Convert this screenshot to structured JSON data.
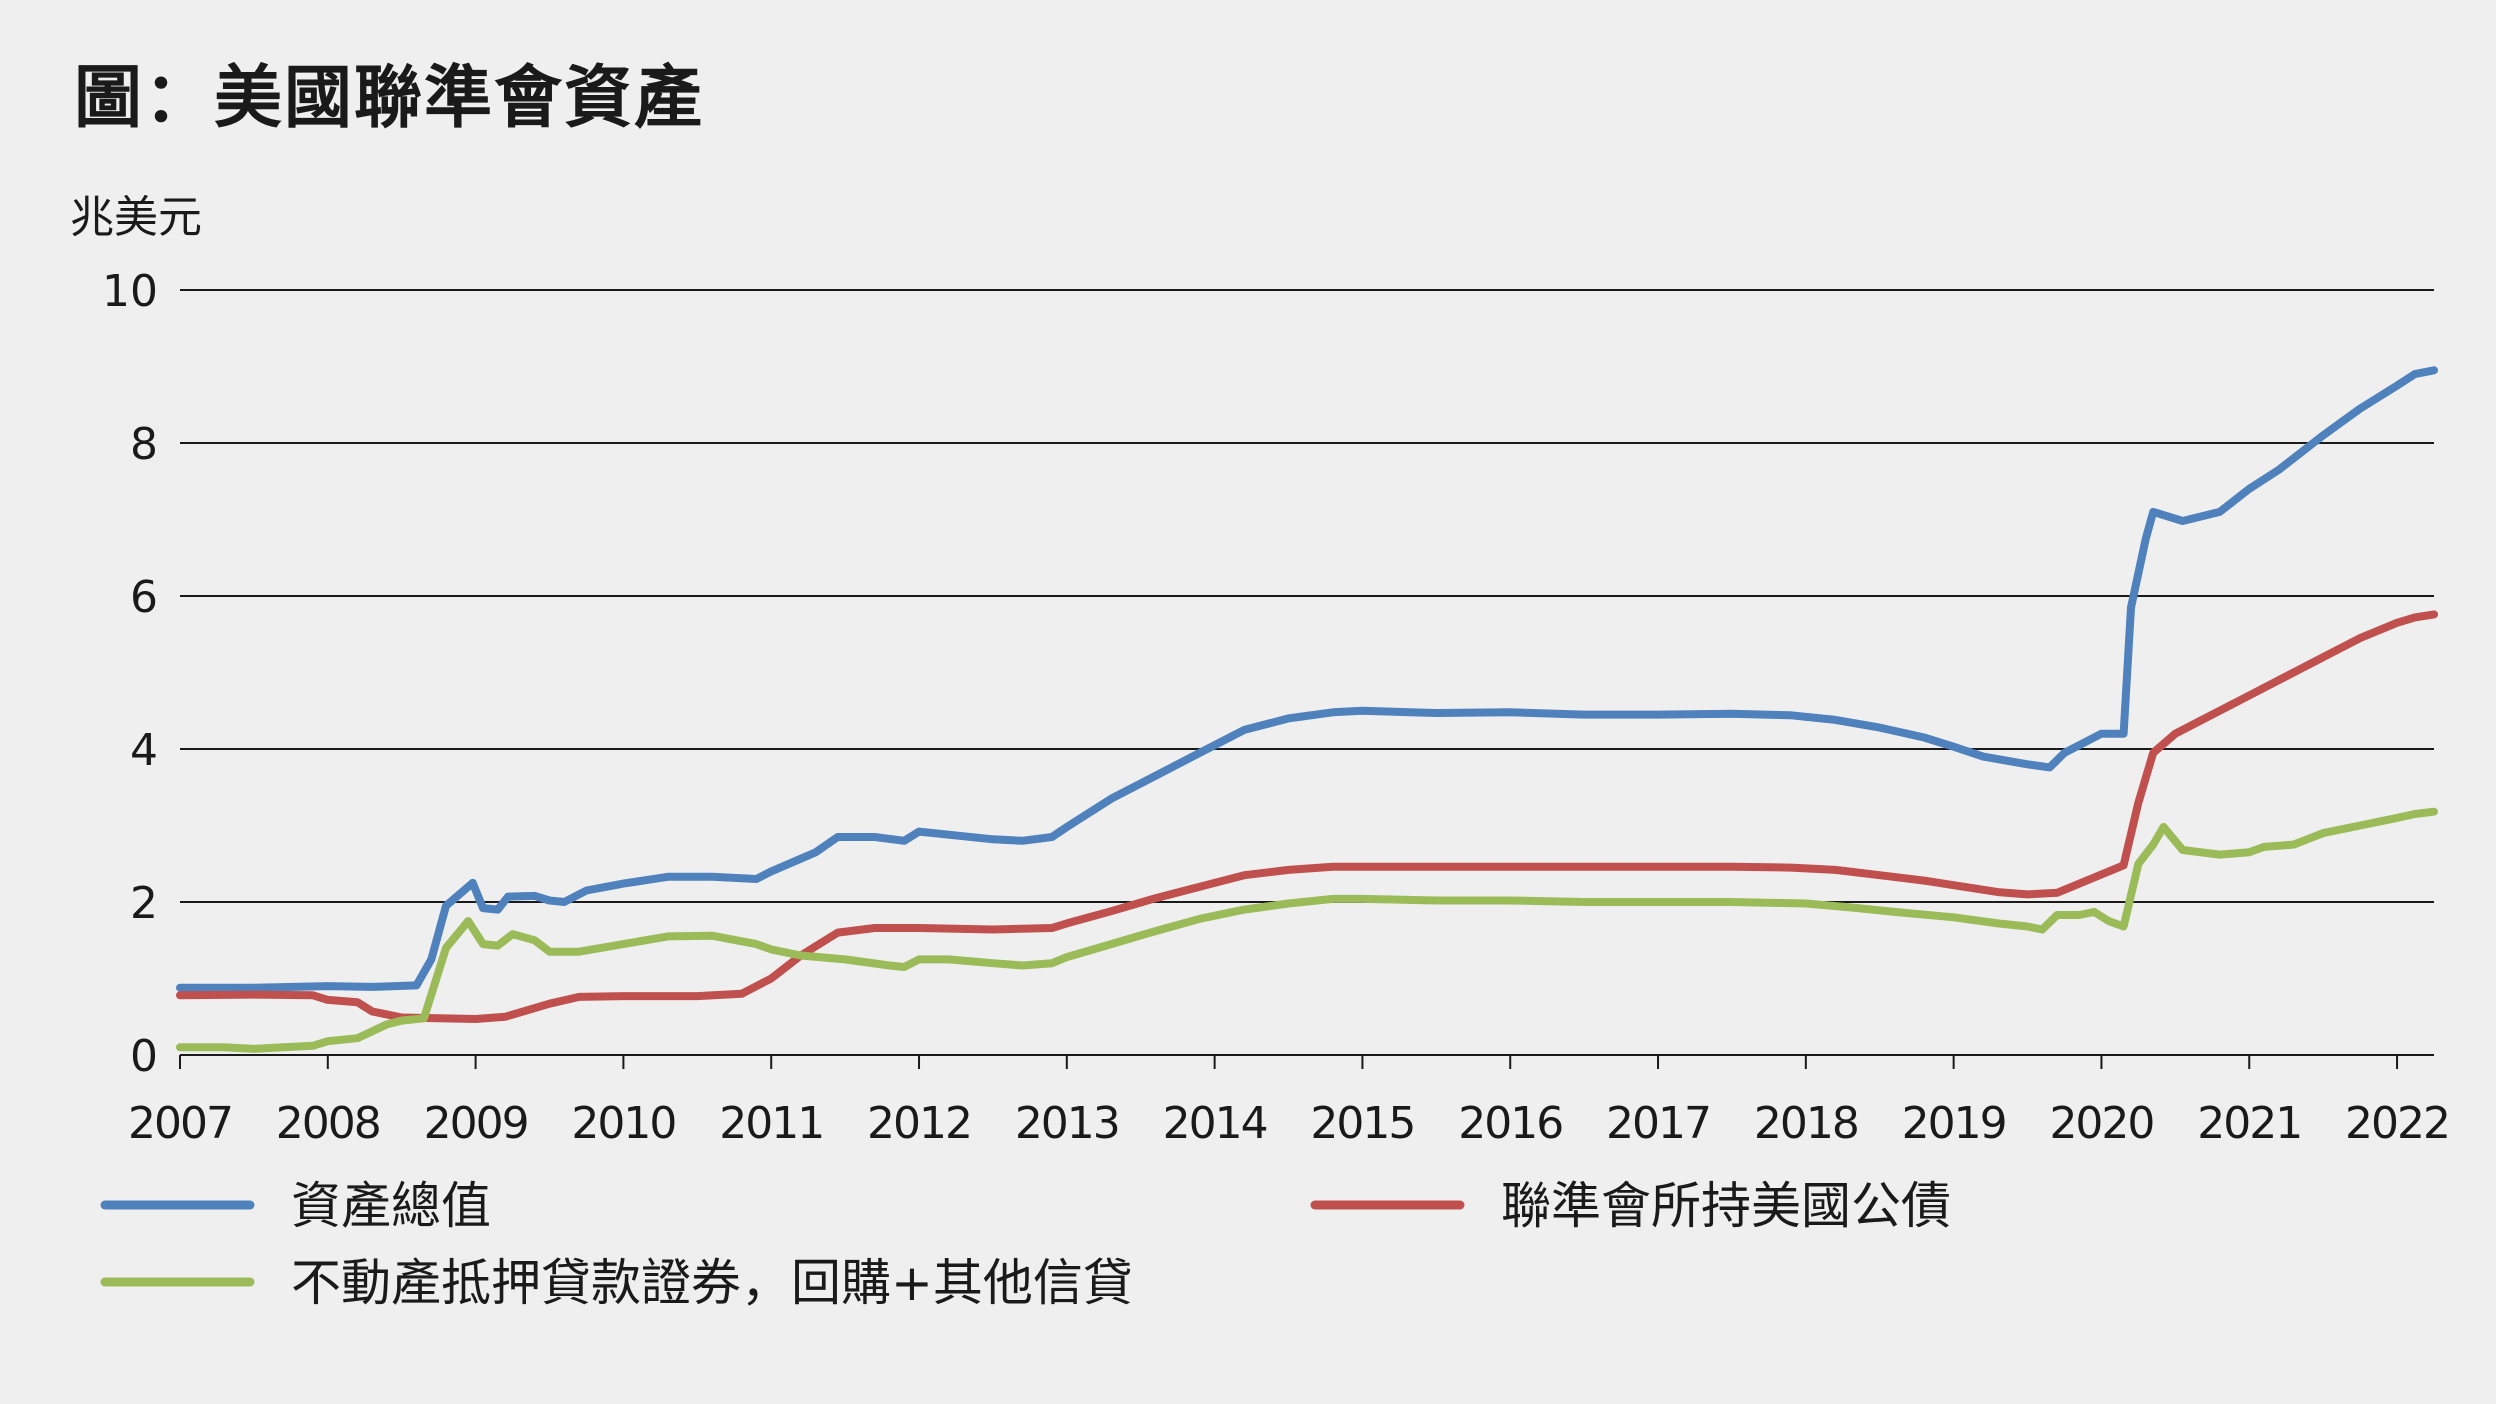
{
  "title": "圖：美國聯準會資產",
  "chart_data": {
    "type": "line",
    "title": "圖：美國聯準會資產",
    "ylabel": "兆美元",
    "xlabel": "",
    "ylim": [
      0,
      10
    ],
    "yticks": [
      "0",
      "2",
      "4",
      "6",
      "8",
      "10"
    ],
    "xlim": [
      2007.0,
      2022.25
    ],
    "xticks": [
      "2007",
      "2008",
      "2009",
      "2010",
      "2011",
      "2012",
      "2013",
      "2014",
      "2015",
      "2016",
      "2017",
      "2018",
      "2019",
      "2020",
      "2021",
      "2022"
    ],
    "grid": "horizontal",
    "legend_position": "bottom",
    "series": [
      {
        "name": "資產總值",
        "color": "#4f81bd",
        "points": [
          [
            2007.0,
            0.88
          ],
          [
            2007.5,
            0.88
          ],
          [
            2008.0,
            0.9
          ],
          [
            2008.3,
            0.89
          ],
          [
            2008.6,
            0.91
          ],
          [
            2008.7,
            1.25
          ],
          [
            2008.8,
            1.95
          ],
          [
            2008.98,
            2.25
          ],
          [
            2009.05,
            1.92
          ],
          [
            2009.15,
            1.9
          ],
          [
            2009.22,
            2.07
          ],
          [
            2009.4,
            2.08
          ],
          [
            2009.5,
            2.02
          ],
          [
            2009.6,
            2.0
          ],
          [
            2009.75,
            2.15
          ],
          [
            2010.0,
            2.24
          ],
          [
            2010.3,
            2.33
          ],
          [
            2010.6,
            2.33
          ],
          [
            2010.9,
            2.3
          ],
          [
            2011.0,
            2.4
          ],
          [
            2011.3,
            2.65
          ],
          [
            2011.45,
            2.85
          ],
          [
            2011.7,
            2.85
          ],
          [
            2011.9,
            2.8
          ],
          [
            2012.0,
            2.92
          ],
          [
            2012.2,
            2.88
          ],
          [
            2012.5,
            2.82
          ],
          [
            2012.7,
            2.8
          ],
          [
            2012.9,
            2.85
          ],
          [
            2013.0,
            2.98
          ],
          [
            2013.3,
            3.35
          ],
          [
            2013.6,
            3.65
          ],
          [
            2013.9,
            3.95
          ],
          [
            2014.2,
            4.25
          ],
          [
            2014.5,
            4.4
          ],
          [
            2014.8,
            4.48
          ],
          [
            2015.0,
            4.5
          ],
          [
            2015.5,
            4.47
          ],
          [
            2016.0,
            4.48
          ],
          [
            2016.5,
            4.45
          ],
          [
            2017.0,
            4.45
          ],
          [
            2017.5,
            4.46
          ],
          [
            2017.9,
            4.44
          ],
          [
            2018.2,
            4.38
          ],
          [
            2018.5,
            4.28
          ],
          [
            2018.8,
            4.15
          ],
          [
            2019.0,
            4.03
          ],
          [
            2019.2,
            3.9
          ],
          [
            2019.5,
            3.8
          ],
          [
            2019.65,
            3.76
          ],
          [
            2019.75,
            3.95
          ],
          [
            2019.95,
            4.15
          ],
          [
            2020.0,
            4.2
          ],
          [
            2020.15,
            4.2
          ],
          [
            2020.2,
            5.85
          ],
          [
            2020.3,
            6.75
          ],
          [
            2020.35,
            7.1
          ],
          [
            2020.55,
            6.98
          ],
          [
            2020.8,
            7.1
          ],
          [
            2021.0,
            7.4
          ],
          [
            2021.2,
            7.65
          ],
          [
            2021.5,
            8.1
          ],
          [
            2021.75,
            8.45
          ],
          [
            2022.0,
            8.75
          ],
          [
            2022.12,
            8.9
          ],
          [
            2022.25,
            8.95
          ]
        ]
      },
      {
        "name": "聯準會所持美國公債",
        "color": "#c0504d",
        "points": [
          [
            2007.0,
            0.78
          ],
          [
            2007.5,
            0.79
          ],
          [
            2007.9,
            0.78
          ],
          [
            2008.0,
            0.72
          ],
          [
            2008.2,
            0.69
          ],
          [
            2008.3,
            0.57
          ],
          [
            2008.5,
            0.49
          ],
          [
            2009.0,
            0.47
          ],
          [
            2009.2,
            0.5
          ],
          [
            2009.5,
            0.67
          ],
          [
            2009.7,
            0.76
          ],
          [
            2010.0,
            0.77
          ],
          [
            2010.5,
            0.77
          ],
          [
            2010.8,
            0.8
          ],
          [
            2011.0,
            1.0
          ],
          [
            2011.2,
            1.3
          ],
          [
            2011.45,
            1.6
          ],
          [
            2011.7,
            1.66
          ],
          [
            2012.0,
            1.66
          ],
          [
            2012.5,
            1.64
          ],
          [
            2012.9,
            1.66
          ],
          [
            2013.0,
            1.72
          ],
          [
            2013.3,
            1.88
          ],
          [
            2013.6,
            2.05
          ],
          [
            2013.9,
            2.2
          ],
          [
            2014.2,
            2.35
          ],
          [
            2014.5,
            2.42
          ],
          [
            2014.8,
            2.46
          ],
          [
            2015.0,
            2.46
          ],
          [
            2016.0,
            2.46
          ],
          [
            2016.5,
            2.46
          ],
          [
            2017.0,
            2.46
          ],
          [
            2017.5,
            2.46
          ],
          [
            2017.9,
            2.45
          ],
          [
            2018.2,
            2.42
          ],
          [
            2018.5,
            2.35
          ],
          [
            2018.8,
            2.28
          ],
          [
            2019.0,
            2.22
          ],
          [
            2019.3,
            2.13
          ],
          [
            2019.5,
            2.1
          ],
          [
            2019.7,
            2.12
          ],
          [
            2019.9,
            2.28
          ],
          [
            2020.15,
            2.48
          ],
          [
            2020.25,
            3.3
          ],
          [
            2020.35,
            3.95
          ],
          [
            2020.5,
            4.2
          ],
          [
            2020.75,
            4.45
          ],
          [
            2021.0,
            4.7
          ],
          [
            2021.25,
            4.95
          ],
          [
            2021.5,
            5.2
          ],
          [
            2021.75,
            5.45
          ],
          [
            2022.0,
            5.65
          ],
          [
            2022.12,
            5.72
          ],
          [
            2022.25,
            5.76
          ]
        ]
      },
      {
        "name": "不動產抵押貸款證券，回購+其他信貸",
        "color": "#9bbb59",
        "points": [
          [
            2007.0,
            0.1
          ],
          [
            2007.3,
            0.1
          ],
          [
            2007.5,
            0.08
          ],
          [
            2007.7,
            0.1
          ],
          [
            2007.9,
            0.12
          ],
          [
            2008.0,
            0.18
          ],
          [
            2008.2,
            0.22
          ],
          [
            2008.4,
            0.4
          ],
          [
            2008.5,
            0.45
          ],
          [
            2008.65,
            0.48
          ],
          [
            2008.8,
            1.4
          ],
          [
            2008.95,
            1.75
          ],
          [
            2009.05,
            1.45
          ],
          [
            2009.15,
            1.43
          ],
          [
            2009.25,
            1.58
          ],
          [
            2009.4,
            1.5
          ],
          [
            2009.5,
            1.35
          ],
          [
            2009.7,
            1.35
          ],
          [
            2010.0,
            1.45
          ],
          [
            2010.3,
            1.55
          ],
          [
            2010.6,
            1.56
          ],
          [
            2010.9,
            1.45
          ],
          [
            2011.0,
            1.38
          ],
          [
            2011.2,
            1.3
          ],
          [
            2011.5,
            1.25
          ],
          [
            2011.8,
            1.17
          ],
          [
            2011.9,
            1.15
          ],
          [
            2012.0,
            1.25
          ],
          [
            2012.2,
            1.25
          ],
          [
            2012.5,
            1.2
          ],
          [
            2012.7,
            1.17
          ],
          [
            2012.9,
            1.2
          ],
          [
            2013.0,
            1.28
          ],
          [
            2013.3,
            1.45
          ],
          [
            2013.6,
            1.62
          ],
          [
            2013.9,
            1.78
          ],
          [
            2014.2,
            1.9
          ],
          [
            2014.5,
            1.98
          ],
          [
            2014.8,
            2.04
          ],
          [
            2015.0,
            2.04
          ],
          [
            2015.5,
            2.02
          ],
          [
            2016.0,
            2.02
          ],
          [
            2016.5,
            2.0
          ],
          [
            2017.0,
            2.0
          ],
          [
            2017.5,
            2.0
          ],
          [
            2018.0,
            1.98
          ],
          [
            2018.3,
            1.93
          ],
          [
            2018.6,
            1.87
          ],
          [
            2019.0,
            1.8
          ],
          [
            2019.3,
            1.72
          ],
          [
            2019.5,
            1.68
          ],
          [
            2019.6,
            1.64
          ],
          [
            2019.7,
            1.83
          ],
          [
            2019.85,
            1.83
          ],
          [
            2019.95,
            1.87
          ],
          [
            2020.05,
            1.75
          ],
          [
            2020.15,
            1.68
          ],
          [
            2020.25,
            2.5
          ],
          [
            2020.35,
            2.75
          ],
          [
            2020.42,
            2.98
          ],
          [
            2020.55,
            2.68
          ],
          [
            2020.8,
            2.62
          ],
          [
            2021.0,
            2.65
          ],
          [
            2021.1,
            2.72
          ],
          [
            2021.3,
            2.75
          ],
          [
            2021.5,
            2.9
          ],
          [
            2021.75,
            3.0
          ],
          [
            2022.0,
            3.1
          ],
          [
            2022.12,
            3.15
          ],
          [
            2022.25,
            3.18
          ]
        ]
      }
    ]
  }
}
